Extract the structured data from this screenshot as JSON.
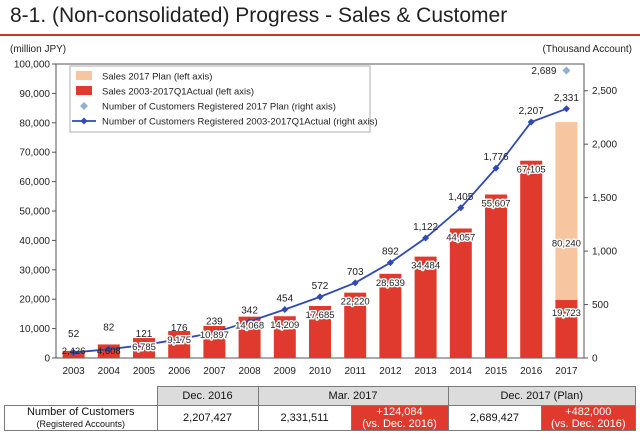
{
  "page": {
    "title": "8-1. (Non-consolidated) Progress -  Sales & Customer"
  },
  "chart_data": {
    "type": "bar",
    "left_axis_unit": "(million JPY)",
    "right_axis_unit": "(Thousand Account)",
    "ylim_left": [
      0,
      100000
    ],
    "ylim_right": [
      0,
      2750
    ],
    "left_ticks": [
      "0",
      "10,000",
      "20,000",
      "30,000",
      "40,000",
      "50,000",
      "60,000",
      "70,000",
      "80,000",
      "90,000",
      "100,000"
    ],
    "right_ticks": [
      "0",
      "500",
      "1,000",
      "1,500",
      "2,000",
      "2,500"
    ],
    "categories": [
      "2003",
      "2004",
      "2005",
      "2006",
      "2007",
      "2008",
      "2009",
      "2010",
      "2011",
      "2012",
      "2013",
      "2014",
      "2015",
      "2016",
      "2017"
    ],
    "legend": [
      "Sales 2017 Plan (left axis)",
      "Sales 2003-2017Q1Actual (left axis)",
      "Number of Customers Registered 2017 Plan (right axis)",
      "Number of Customers Registered 2003-2017Q1Actual (right axis)"
    ],
    "sales_actual": {
      "values": [
        2426,
        4608,
        6785,
        9175,
        10897,
        14068,
        14209,
        17685,
        22220,
        28639,
        34484,
        44057,
        55607,
        67105,
        19723
      ],
      "labels": [
        "2,426",
        "4,608",
        "6,785",
        "9,175",
        "10,897",
        "14,068",
        "14,209",
        "17,685",
        "22,220",
        "28,639",
        "34,484",
        "44,057",
        "55,607",
        "67,105",
        "19,723"
      ]
    },
    "sales_plan": {
      "category": "2017",
      "value": 80240,
      "label": "80,240"
    },
    "customers_actual": {
      "values": [
        52,
        82,
        121,
        176,
        239,
        342,
        454,
        572,
        703,
        892,
        1122,
        1405,
        1776,
        2207,
        2331
      ],
      "labels": [
        "52",
        "82",
        "121",
        "176",
        "239",
        "342",
        "454",
        "572",
        "703",
        "892",
        "1,122",
        "1,405",
        "1,776",
        "2,207",
        "2,331"
      ]
    },
    "customers_plan": {
      "category": "2017",
      "value": 2689,
      "label": "2,689"
    },
    "colors": {
      "sales_actual": "#e03a2e",
      "sales_plan": "#f7c59f",
      "customers_actual": "#2f49b5",
      "customers_plan": "#8fb0d0"
    }
  },
  "table": {
    "headers": [
      "Dec. 2016",
      "Mar. 2017",
      "Dec. 2017 (Plan)"
    ],
    "row_label": "Number of Customers",
    "row_sublabel": "(Registered Accounts)",
    "dec2016": "2,207,427",
    "mar2017": "2,331,511",
    "mar2017_change": "+124,084",
    "mar2017_change_note": "(vs. Dec. 2016)",
    "dec2017_plan": "2,689,427",
    "dec2017_change": "+482,000",
    "dec2017_change_note": "(vs. Dec. 2016)"
  }
}
